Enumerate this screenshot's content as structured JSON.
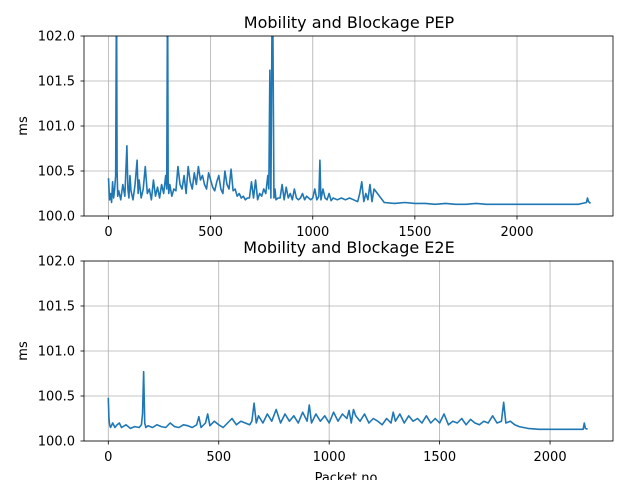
{
  "chart_data": [
    {
      "type": "line",
      "title": "Mobility and Blockage PEP",
      "xlabel": "",
      "ylabel": "ms",
      "xlim": [
        -120,
        2470
      ],
      "ylim": [
        100.0,
        102.0
      ],
      "xticks": [
        0,
        500,
        1000,
        1500,
        2000
      ],
      "yticks": [
        "100.0",
        "100.5",
        "101.0",
        "101.5",
        "102.0"
      ],
      "grid": true,
      "color": "#1f77b4",
      "series": [
        {
          "x": [
            0,
            5,
            10,
            15,
            20,
            25,
            30,
            35,
            38,
            40,
            42,
            45,
            50,
            60,
            70,
            80,
            90,
            95,
            100,
            105,
            110,
            120,
            130,
            140,
            145,
            150,
            160,
            170,
            180,
            190,
            200,
            210,
            220,
            230,
            240,
            250,
            260,
            270,
            280,
            285,
            288,
            290,
            292,
            295,
            300,
            310,
            320,
            330,
            340,
            350,
            360,
            370,
            380,
            390,
            400,
            410,
            420,
            430,
            440,
            450,
            460,
            470,
            480,
            490,
            500,
            510,
            520,
            530,
            540,
            550,
            560,
            570,
            580,
            590,
            600,
            610,
            620,
            630,
            640,
            650,
            660,
            670,
            680,
            690,
            700,
            710,
            720,
            730,
            740,
            750,
            760,
            770,
            780,
            785,
            790,
            795,
            800,
            805,
            810,
            815,
            820,
            830,
            840,
            850,
            860,
            870,
            880,
            890,
            900,
            910,
            920,
            930,
            940,
            950,
            960,
            970,
            980,
            990,
            1000,
            1010,
            1020,
            1030,
            1035,
            1040,
            1050,
            1060,
            1070,
            1080,
            1090,
            1100,
            1120,
            1140,
            1160,
            1180,
            1200,
            1220,
            1230,
            1240,
            1250,
            1260,
            1270,
            1280,
            1290,
            1300,
            1350,
            1400,
            1450,
            1500,
            1550,
            1600,
            1650,
            1700,
            1750,
            1800,
            1850,
            1900,
            1950,
            2000,
            2050,
            2100,
            2150,
            2200,
            2250,
            2300,
            2320,
            2340,
            2345,
            2350,
            2360
          ],
          "y": [
            100.42,
            100.18,
            100.25,
            100.15,
            100.38,
            100.2,
            100.3,
            100.45,
            102.0,
            102.0,
            100.5,
            100.22,
            100.28,
            100.18,
            100.35,
            100.22,
            100.78,
            100.3,
            100.2,
            100.45,
            100.28,
            100.18,
            100.35,
            100.62,
            100.25,
            100.4,
            100.2,
            100.3,
            100.55,
            100.25,
            100.3,
            100.18,
            100.4,
            100.22,
            100.32,
            100.2,
            100.35,
            100.25,
            100.45,
            100.3,
            102.0,
            102.0,
            100.4,
            100.25,
            100.35,
            100.22,
            100.3,
            100.28,
            100.55,
            100.35,
            100.3,
            100.45,
            100.25,
            100.55,
            100.38,
            100.3,
            100.48,
            100.35,
            100.55,
            100.4,
            100.45,
            100.35,
            100.3,
            100.48,
            100.4,
            100.32,
            100.28,
            100.38,
            100.45,
            100.3,
            100.25,
            100.5,
            100.35,
            100.3,
            100.52,
            100.28,
            100.3,
            100.22,
            100.25,
            100.2,
            100.22,
            100.18,
            100.2,
            100.2,
            100.38,
            100.2,
            100.4,
            100.18,
            100.25,
            100.22,
            100.3,
            100.25,
            100.45,
            100.3,
            101.62,
            100.2,
            102.0,
            102.0,
            100.2,
            100.3,
            100.18,
            100.2,
            100.2,
            100.35,
            100.18,
            100.32,
            100.2,
            100.25,
            100.18,
            100.3,
            100.2,
            100.18,
            100.2,
            100.25,
            100.18,
            100.22,
            100.2,
            100.18,
            100.2,
            100.3,
            100.18,
            100.22,
            100.62,
            100.18,
            100.3,
            100.2,
            100.18,
            100.25,
            100.17,
            100.2,
            100.18,
            100.2,
            100.18,
            100.2,
            100.18,
            100.16,
            100.25,
            100.38,
            100.16,
            100.25,
            100.18,
            100.35,
            100.16,
            100.3,
            100.15,
            100.14,
            100.15,
            100.14,
            100.14,
            100.13,
            100.14,
            100.13,
            100.13,
            100.14,
            100.13,
            100.13,
            100.13,
            100.13,
            100.13,
            100.13,
            100.13,
            100.13,
            100.13,
            100.13,
            100.14,
            100.15,
            100.2,
            100.16,
            100.14
          ]
        }
      ]
    },
    {
      "type": "line",
      "title": "Mobility and Blockage E2E",
      "xlabel": "Packet no",
      "ylabel": "ms",
      "xlim": [
        -110,
        2285
      ],
      "ylim": [
        100.0,
        102.0
      ],
      "xticks": [
        0,
        500,
        1000,
        1500,
        2000
      ],
      "yticks": [
        "100.0",
        "100.5",
        "101.0",
        "101.5",
        "102.0"
      ],
      "grid": true,
      "color": "#1f77b4",
      "series": [
        {
          "x": [
            0,
            3,
            6,
            10,
            20,
            30,
            40,
            50,
            60,
            80,
            100,
            120,
            140,
            150,
            155,
            160,
            165,
            170,
            180,
            200,
            220,
            240,
            260,
            280,
            300,
            320,
            340,
            360,
            380,
            400,
            410,
            420,
            440,
            450,
            460,
            480,
            500,
            520,
            540,
            560,
            580,
            600,
            620,
            640,
            650,
            660,
            670,
            680,
            700,
            720,
            740,
            760,
            780,
            800,
            820,
            840,
            860,
            880,
            900,
            910,
            920,
            940,
            960,
            980,
            1000,
            1020,
            1040,
            1060,
            1080,
            1090,
            1100,
            1110,
            1120,
            1140,
            1160,
            1180,
            1200,
            1220,
            1240,
            1260,
            1280,
            1290,
            1300,
            1320,
            1340,
            1360,
            1380,
            1400,
            1420,
            1440,
            1460,
            1480,
            1500,
            1520,
            1540,
            1560,
            1580,
            1600,
            1620,
            1640,
            1660,
            1680,
            1700,
            1720,
            1740,
            1760,
            1780,
            1790,
            1800,
            1820,
            1840,
            1860,
            1880,
            1900,
            1950,
            2000,
            2050,
            2100,
            2150,
            2155,
            2160,
            2170
          ],
          "y": [
            100.48,
            100.25,
            100.18,
            100.15,
            100.2,
            100.15,
            100.18,
            100.2,
            100.15,
            100.18,
            100.14,
            100.16,
            100.15,
            100.18,
            100.3,
            100.77,
            100.2,
            100.15,
            100.17,
            100.15,
            100.18,
            100.16,
            100.15,
            100.2,
            100.16,
            100.15,
            100.18,
            100.17,
            100.15,
            100.18,
            100.27,
            100.15,
            100.2,
            100.3,
            100.17,
            100.22,
            100.18,
            100.15,
            100.2,
            100.25,
            100.18,
            100.22,
            100.2,
            100.18,
            100.22,
            100.42,
            100.2,
            100.28,
            100.2,
            100.3,
            100.22,
            100.35,
            100.2,
            100.3,
            100.22,
            100.28,
            100.2,
            100.32,
            100.22,
            100.4,
            100.2,
            100.3,
            100.22,
            100.28,
            100.2,
            100.32,
            100.22,
            100.3,
            100.25,
            100.34,
            100.2,
            100.35,
            100.28,
            100.22,
            100.3,
            100.2,
            100.25,
            100.22,
            100.18,
            100.25,
            100.2,
            100.32,
            100.22,
            100.3,
            100.2,
            100.28,
            100.22,
            100.25,
            100.2,
            100.28,
            100.2,
            100.25,
            100.2,
            100.3,
            100.18,
            100.22,
            100.2,
            100.25,
            100.18,
            100.24,
            100.2,
            100.18,
            100.22,
            100.2,
            100.28,
            100.2,
            100.22,
            100.43,
            100.2,
            100.22,
            100.18,
            100.16,
            100.15,
            100.14,
            100.13,
            100.13,
            100.13,
            100.13,
            100.13,
            100.2,
            100.14,
            100.13
          ]
        }
      ]
    }
  ]
}
